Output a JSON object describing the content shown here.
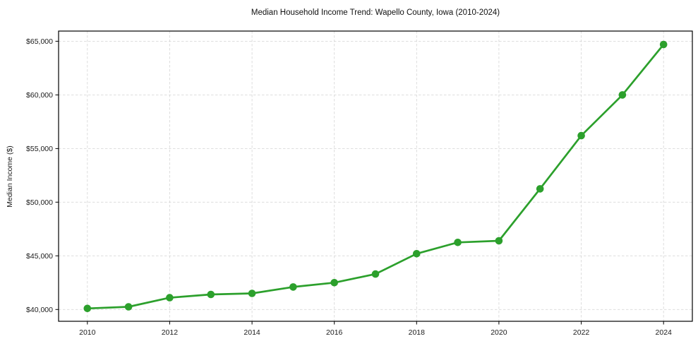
{
  "chart_data": {
    "type": "line",
    "title": "Median Household Income Trend: Wapello County, Iowa (2010-2024)",
    "xlabel": "",
    "ylabel": "Median Income ($)",
    "x": [
      2010,
      2011,
      2012,
      2013,
      2014,
      2015,
      2016,
      2017,
      2018,
      2019,
      2020,
      2021,
      2022,
      2023,
      2024
    ],
    "series": [
      {
        "name": "Median household income",
        "color": "#2ca02c",
        "marker": "circle",
        "values": [
          40100,
          40250,
          41100,
          41400,
          41500,
          42100,
          42500,
          43300,
          45200,
          46250,
          46400,
          51250,
          56200,
          60000,
          64700
        ]
      }
    ],
    "xlim": [
      2009.3,
      2024.7
    ],
    "ylim": [
      38900,
      65950
    ],
    "xticks": {
      "values": [
        2010,
        2012,
        2014,
        2016,
        2018,
        2020,
        2022,
        2024
      ],
      "labels": [
        "2010",
        "2012",
        "2014",
        "2016",
        "2018",
        "2020",
        "2022",
        "2024"
      ]
    },
    "yticks": {
      "values": [
        40000,
        45000,
        50000,
        55000,
        60000,
        65000
      ],
      "labels": [
        "$40,000",
        "$45,000",
        "$50,000",
        "$55,000",
        "$60,000",
        "$65,000"
      ]
    },
    "grid": {
      "show": true,
      "color": "#d9d9d9",
      "style": "dashed",
      "position": "both-axes-major"
    },
    "legend": {
      "show": false
    },
    "colors": {
      "line": "#2ca02c",
      "spine": "#000000",
      "tick": "#000000",
      "text": "#1a1a1a",
      "background": "#ffffff"
    }
  }
}
